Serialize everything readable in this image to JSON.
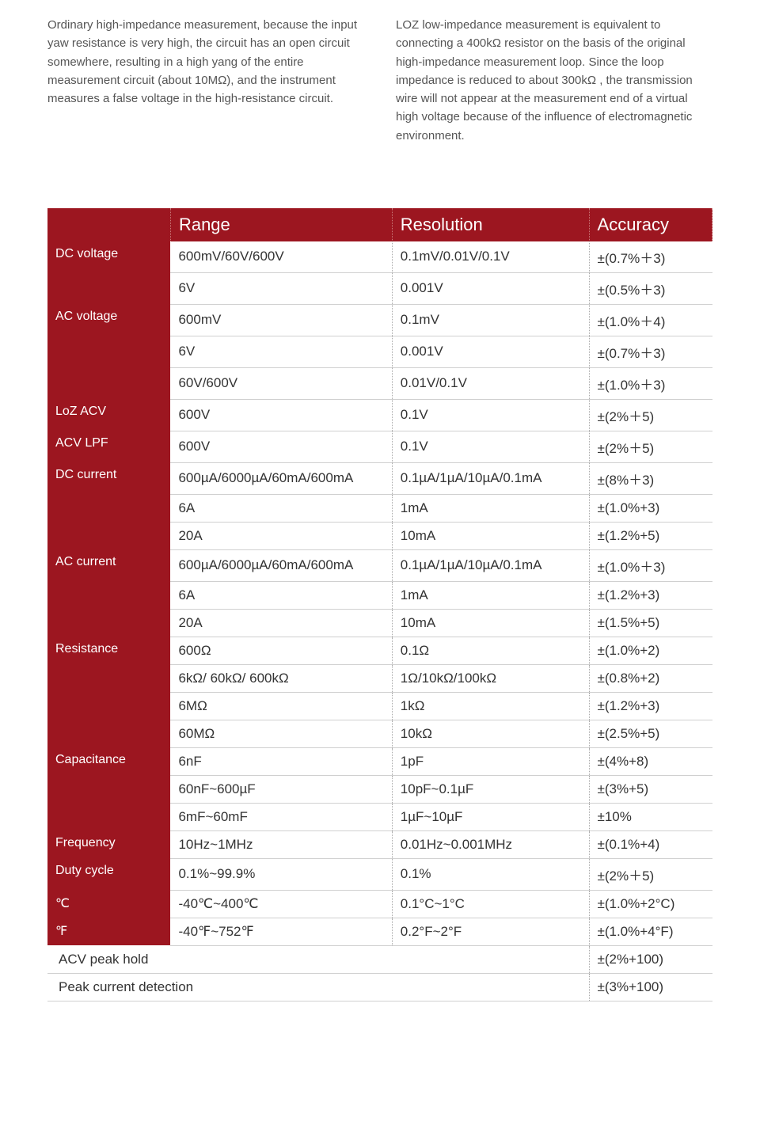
{
  "intro": {
    "left": "Ordinary high-impedance measurement, because the input yaw resistance is very high, the circuit has an open circuit somewhere, resulting in a high yang of the entire measurement circuit (about 10MΩ), and the instrument measures a false voltage in the high-resistance circuit.",
    "right": "LOZ low-impedance measurement is equivalent to connecting a 400kΩ resistor on the basis of the original high-impedance measurement loop. Since the loop impedance is reduced to about 300kΩ , the transmission wire will not appear at the measurement end of a virtual high voltage because of the influence of electromagnetic environment."
  },
  "table": {
    "headers": {
      "range": "Range",
      "resolution": "Resolution",
      "accuracy": "Accuracy"
    },
    "groups": [
      {
        "label": "DC voltage",
        "labelStyle": "red",
        "rows": [
          {
            "range": "600mV/60V/600V",
            "res": "0.1mV/0.01V/0.1V",
            "acc": "±(0.7%＋3)"
          },
          {
            "range": "6V",
            "res": "0.001V",
            "acc": "±(0.5%＋3)"
          }
        ]
      },
      {
        "label": "AC voltage",
        "labelStyle": "red",
        "rows": [
          {
            "range": "600mV",
            "res": "0.1mV",
            "acc": "±(1.0%＋4)"
          },
          {
            "range": "6V",
            "res": "0.001V",
            "acc": "±(0.7%＋3)"
          },
          {
            "range": "60V/600V",
            "res": "0.01V/0.1V",
            "acc": "±(1.0%＋3)"
          }
        ]
      },
      {
        "label": "LoZ ACV",
        "labelStyle": "red",
        "rows": [
          {
            "range": "600V",
            "res": "0.1V",
            "acc": "±(2%＋5)"
          }
        ]
      },
      {
        "label": "ACV LPF",
        "labelStyle": "red",
        "rows": [
          {
            "range": "600V",
            "res": "0.1V",
            "acc": "±(2%＋5)"
          }
        ]
      },
      {
        "label": "DC current",
        "labelStyle": "red",
        "rows": [
          {
            "range": "600µA/6000µA/60mA/600mA",
            "res": "0.1µA/1µA/10µA/0.1mA",
            "acc": "±(8%＋3)"
          },
          {
            "range": "6A",
            "res": "1mA",
            "acc": "±(1.0%+3)"
          },
          {
            "range": "20A",
            "res": "10mA",
            "acc": "±(1.2%+5)"
          }
        ]
      },
      {
        "label": "AC current",
        "labelStyle": "red",
        "rows": [
          {
            "range": "600µA/6000µA/60mA/600mA",
            "res": "0.1µA/1µA/10µA/0.1mA",
            "acc": "±(1.0%＋3)"
          },
          {
            "range": "6A",
            "res": "1mA",
            "acc": "±(1.2%+3)"
          },
          {
            "range": "20A",
            "res": "10mA",
            "acc": "±(1.5%+5)"
          }
        ]
      },
      {
        "label": "Resistance",
        "labelStyle": "red",
        "rows": [
          {
            "range": "600Ω",
            "res": "0.1Ω",
            "acc": "±(1.0%+2)"
          },
          {
            "range": "6kΩ/ 60kΩ/ 600kΩ",
            "res": "1Ω/10kΩ/100kΩ",
            "acc": "±(0.8%+2)"
          },
          {
            "range": "6MΩ",
            "res": "1kΩ",
            "acc": "±(1.2%+3)"
          },
          {
            "range": "60MΩ",
            "res": "10kΩ",
            "acc": "±(2.5%+5)"
          }
        ]
      },
      {
        "label": "Capacitance",
        "labelStyle": "red",
        "rows": [
          {
            "range": "6nF",
            "res": "1pF",
            "acc": "±(4%+8)"
          },
          {
            "range": "60nF~600µF",
            "res": "10pF~0.1µF",
            "acc": "±(3%+5)"
          },
          {
            "range": "6mF~60mF",
            "res": "1µF~10µF",
            "acc": "±10%"
          }
        ]
      },
      {
        "label": "Frequency",
        "labelStyle": "red",
        "rows": [
          {
            "range": "10Hz~1MHz",
            "res": "0.01Hz~0.001MHz",
            "acc": "±(0.1%+4)"
          }
        ]
      },
      {
        "label": "Duty cycle",
        "labelStyle": "red",
        "rows": [
          {
            "range": "0.1%~99.9%",
            "res": "0.1%",
            "acc": "±(2%＋5)"
          }
        ]
      },
      {
        "label": "℃",
        "labelStyle": "red",
        "rows": [
          {
            "range": "-40℃~400℃",
            "res": "0.1°C~1°C",
            "acc": "±(1.0%+2°C)"
          }
        ]
      },
      {
        "label": "℉",
        "labelStyle": "red",
        "rows": [
          {
            "range": "-40℉~752℉",
            "res": "0.2°F~2°F",
            "acc": "±(1.0%+4°F)"
          }
        ]
      },
      {
        "label": "ACV peak hold",
        "labelStyle": "white",
        "rows": [
          {
            "range": "",
            "res": "",
            "acc": "±(2%+100)"
          }
        ]
      },
      {
        "label": "Peak current detection",
        "labelStyle": "white",
        "rows": [
          {
            "range": "",
            "res": "",
            "acc": "±(3%+100)"
          }
        ]
      }
    ],
    "colors": {
      "header_bg": "#9c1620",
      "header_text": "#ffffff",
      "cell_text": "#333333",
      "border": "#d0d0d0",
      "dotted_border": "#aaaaaa"
    }
  }
}
